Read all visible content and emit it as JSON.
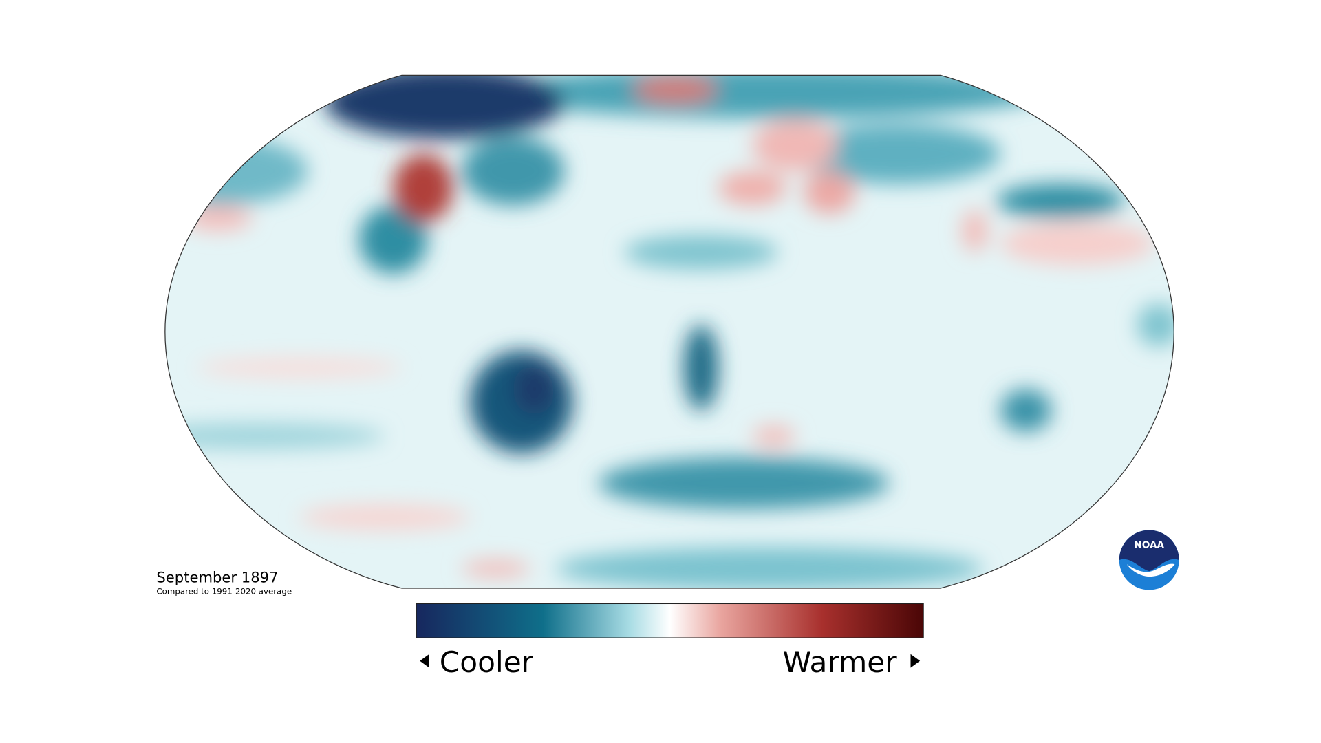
{
  "caption": {
    "title": "September 1897",
    "subtitle": "Compared to 1991-2020 average"
  },
  "legend": {
    "low": "Cooler",
    "high": "Warmer"
  },
  "logo": "NOAA"
}
